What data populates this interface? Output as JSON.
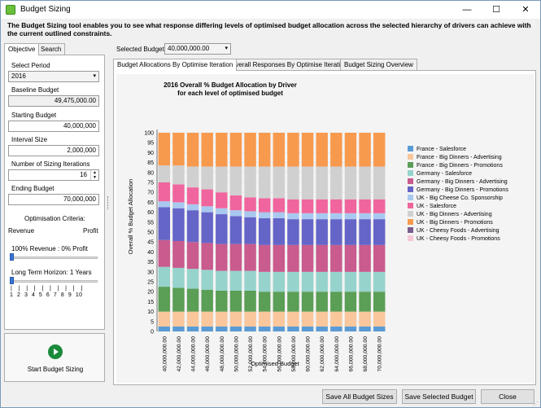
{
  "window": {
    "title": "Budget Sizing",
    "minimize": "—",
    "maximize": "☐",
    "close": "✕"
  },
  "description": "The Budget Sizing tool enables you to see what response differing levels of optimised budget allocation across the selected hierarchy of drivers can achieve with the current outlined constraints.",
  "left": {
    "tabs": [
      "Objective",
      "Search"
    ],
    "select_period_label": "Select Period",
    "select_period_value": "2016",
    "baseline_label": "Baseline Budget",
    "baseline_value": "49,475,000.00",
    "starting_label": "Starting Budget",
    "starting_value": "40,000,000",
    "interval_label": "Interval Size",
    "interval_value": "2,000,000",
    "iterations_label": "Number of Sizing Iterations",
    "iterations_value": "16",
    "ending_label": "Ending Budget",
    "ending_value": "70,000,000",
    "opt_label": "Optimisation Criteria:",
    "revenue_label": "Revenue",
    "profit_label": "Profit",
    "rev_profit_text": "100% Revenue : 0% Profit",
    "horizon_text": "Long Term Horizon: 1 Years",
    "horizon_ticks": "1  2  3  4  5  6  7  8  9  10",
    "start_button": "Start Budget Sizing",
    "rev_profit_position": 0,
    "horizon_position": 0
  },
  "main": {
    "selected_budget_label": "Selected Budget",
    "selected_budget_value": "40,000,000.00",
    "tabs": [
      "Budget Allocations By Optimise Iteration",
      "Overall Responses By Optimise Iteration",
      "Budget Sizing Overview"
    ]
  },
  "buttons": {
    "save_all": "Save All Budget Sizes",
    "save_selected": "Save Selected Budget",
    "close": "Close"
  },
  "chart_data": {
    "type": "bar",
    "stacked": true,
    "title": "2016 Overall % Budget Allocation by Driver",
    "subtitle": "for each level of optimised budget",
    "xlabel": "Optimised Budget",
    "ylabel": "Overall % Budget Allocation",
    "ylim": [
      0,
      100
    ],
    "yticks": [
      0,
      5,
      10,
      15,
      20,
      25,
      30,
      35,
      40,
      45,
      50,
      55,
      60,
      65,
      70,
      75,
      80,
      85,
      90,
      95,
      100
    ],
    "legend_position": "right",
    "categories": [
      "40,000,000.00",
      "42,000,000.00",
      "44,000,000.00",
      "46,000,000.00",
      "48,000,000.00",
      "50,000,000.00",
      "52,000,000.00",
      "54,000,000.00",
      "56,000,000.00",
      "58,000,000.00",
      "60,000,000.00",
      "62,000,000.00",
      "64,000,000.00",
      "66,000,000.00",
      "68,000,000.00",
      "70,000,000.00"
    ],
    "tick_labels": [
      "40,000,000.00",
      "42,000,000.00",
      "44,000,000.00",
      "46,000,000.00",
      "48,000,000.00",
      "50,000,000.00",
      "52,000,000.00",
      "54,000,000.00",
      "56,000,000.00",
      "58,000,000.00",
      "60,000,000.00",
      "62,000,000.00",
      "64,000,000.00",
      "66,000,000.00",
      "68,000,000.00",
      "70,000,000.00"
    ],
    "series": [
      {
        "name": "France - Salesforce",
        "color": "#5b9bd5",
        "values": [
          2.5,
          2.5,
          2.5,
          2.5,
          2.5,
          2.5,
          2.5,
          2.5,
          2.5,
          2.5,
          2.5,
          2.5,
          2.5,
          2.5,
          2.5,
          2.5
        ]
      },
      {
        "name": "France - Big Dinners - Advertising",
        "color": "#f9c79b",
        "values": [
          7.5,
          7.5,
          7.5,
          7.5,
          7.5,
          7.5,
          7.5,
          7.5,
          7.5,
          7.5,
          7.5,
          7.5,
          7.5,
          7.5,
          7.5,
          7.5
        ]
      },
      {
        "name": "France - Big Dinners - Promotions",
        "color": "#5b9e56",
        "values": [
          12.5,
          12.0,
          11.5,
          11.0,
          10.5,
          10.5,
          10.5,
          10.0,
          10.0,
          10.0,
          10.0,
          10.0,
          10.0,
          10.0,
          10.0,
          10.0
        ]
      },
      {
        "name": "Germany - Salesforce",
        "color": "#96d3cc",
        "values": [
          10.0,
          10.0,
          10.0,
          10.0,
          10.0,
          10.0,
          10.0,
          10.0,
          10.0,
          10.0,
          10.0,
          10.0,
          10.0,
          10.0,
          10.0,
          10.0
        ]
      },
      {
        "name": "Germany - Big Dinners - Advertising",
        "color": "#c95b8e",
        "values": [
          13.5,
          13.5,
          13.5,
          13.5,
          13.5,
          13.5,
          13.5,
          13.5,
          13.5,
          13.5,
          13.5,
          13.5,
          13.5,
          13.5,
          13.5,
          13.5
        ]
      },
      {
        "name": "Germany - Big Dinners - Promotions",
        "color": "#6565c8",
        "values": [
          16.5,
          16.5,
          16.0,
          15.5,
          15.0,
          14.0,
          13.5,
          13.5,
          13.5,
          13.0,
          13.0,
          13.0,
          13.0,
          13.0,
          13.0,
          13.0
        ]
      },
      {
        "name": "UK - Big Cheese Co. Sponsorship",
        "color": "#a9c8ef",
        "values": [
          3.0,
          3.0,
          3.0,
          3.0,
          3.0,
          3.0,
          3.0,
          3.0,
          3.0,
          3.0,
          3.0,
          3.0,
          3.0,
          3.0,
          3.0,
          3.0
        ]
      },
      {
        "name": "UK - Salesforce",
        "color": "#f0659d",
        "values": [
          9.5,
          9.0,
          8.5,
          8.5,
          8.0,
          7.5,
          7.0,
          7.0,
          7.0,
          7.0,
          7.0,
          7.0,
          7.0,
          7.0,
          7.0,
          7.0
        ]
      },
      {
        "name": "UK - Big Dinners - Advertising",
        "color": "#d0d0d0",
        "values": [
          8.5,
          9.5,
          10.5,
          11.5,
          13.0,
          14.5,
          15.5,
          16.0,
          16.0,
          16.5,
          16.5,
          16.5,
          16.5,
          16.5,
          16.5,
          16.5
        ]
      },
      {
        "name": "UK - Big Dinners - Promotions",
        "color": "#f79a4e",
        "values": [
          16.5,
          16.5,
          17.0,
          17.0,
          17.0,
          17.0,
          17.0,
          17.0,
          17.0,
          17.0,
          17.0,
          17.0,
          17.0,
          17.0,
          17.0,
          17.0
        ]
      },
      {
        "name": "UK - Cheesy Foods - Advertising",
        "color": "#7a5c8e",
        "values": [
          0,
          0,
          0,
          0,
          0,
          0,
          0,
          0,
          0,
          0,
          0,
          0,
          0,
          0,
          0,
          0
        ]
      },
      {
        "name": "UK - Cheesy Foods - Promotions",
        "color": "#f6c7d6",
        "values": [
          0,
          0,
          0,
          0,
          0,
          0,
          0,
          0,
          0,
          0,
          0,
          0,
          0,
          0,
          0,
          0
        ]
      }
    ]
  }
}
